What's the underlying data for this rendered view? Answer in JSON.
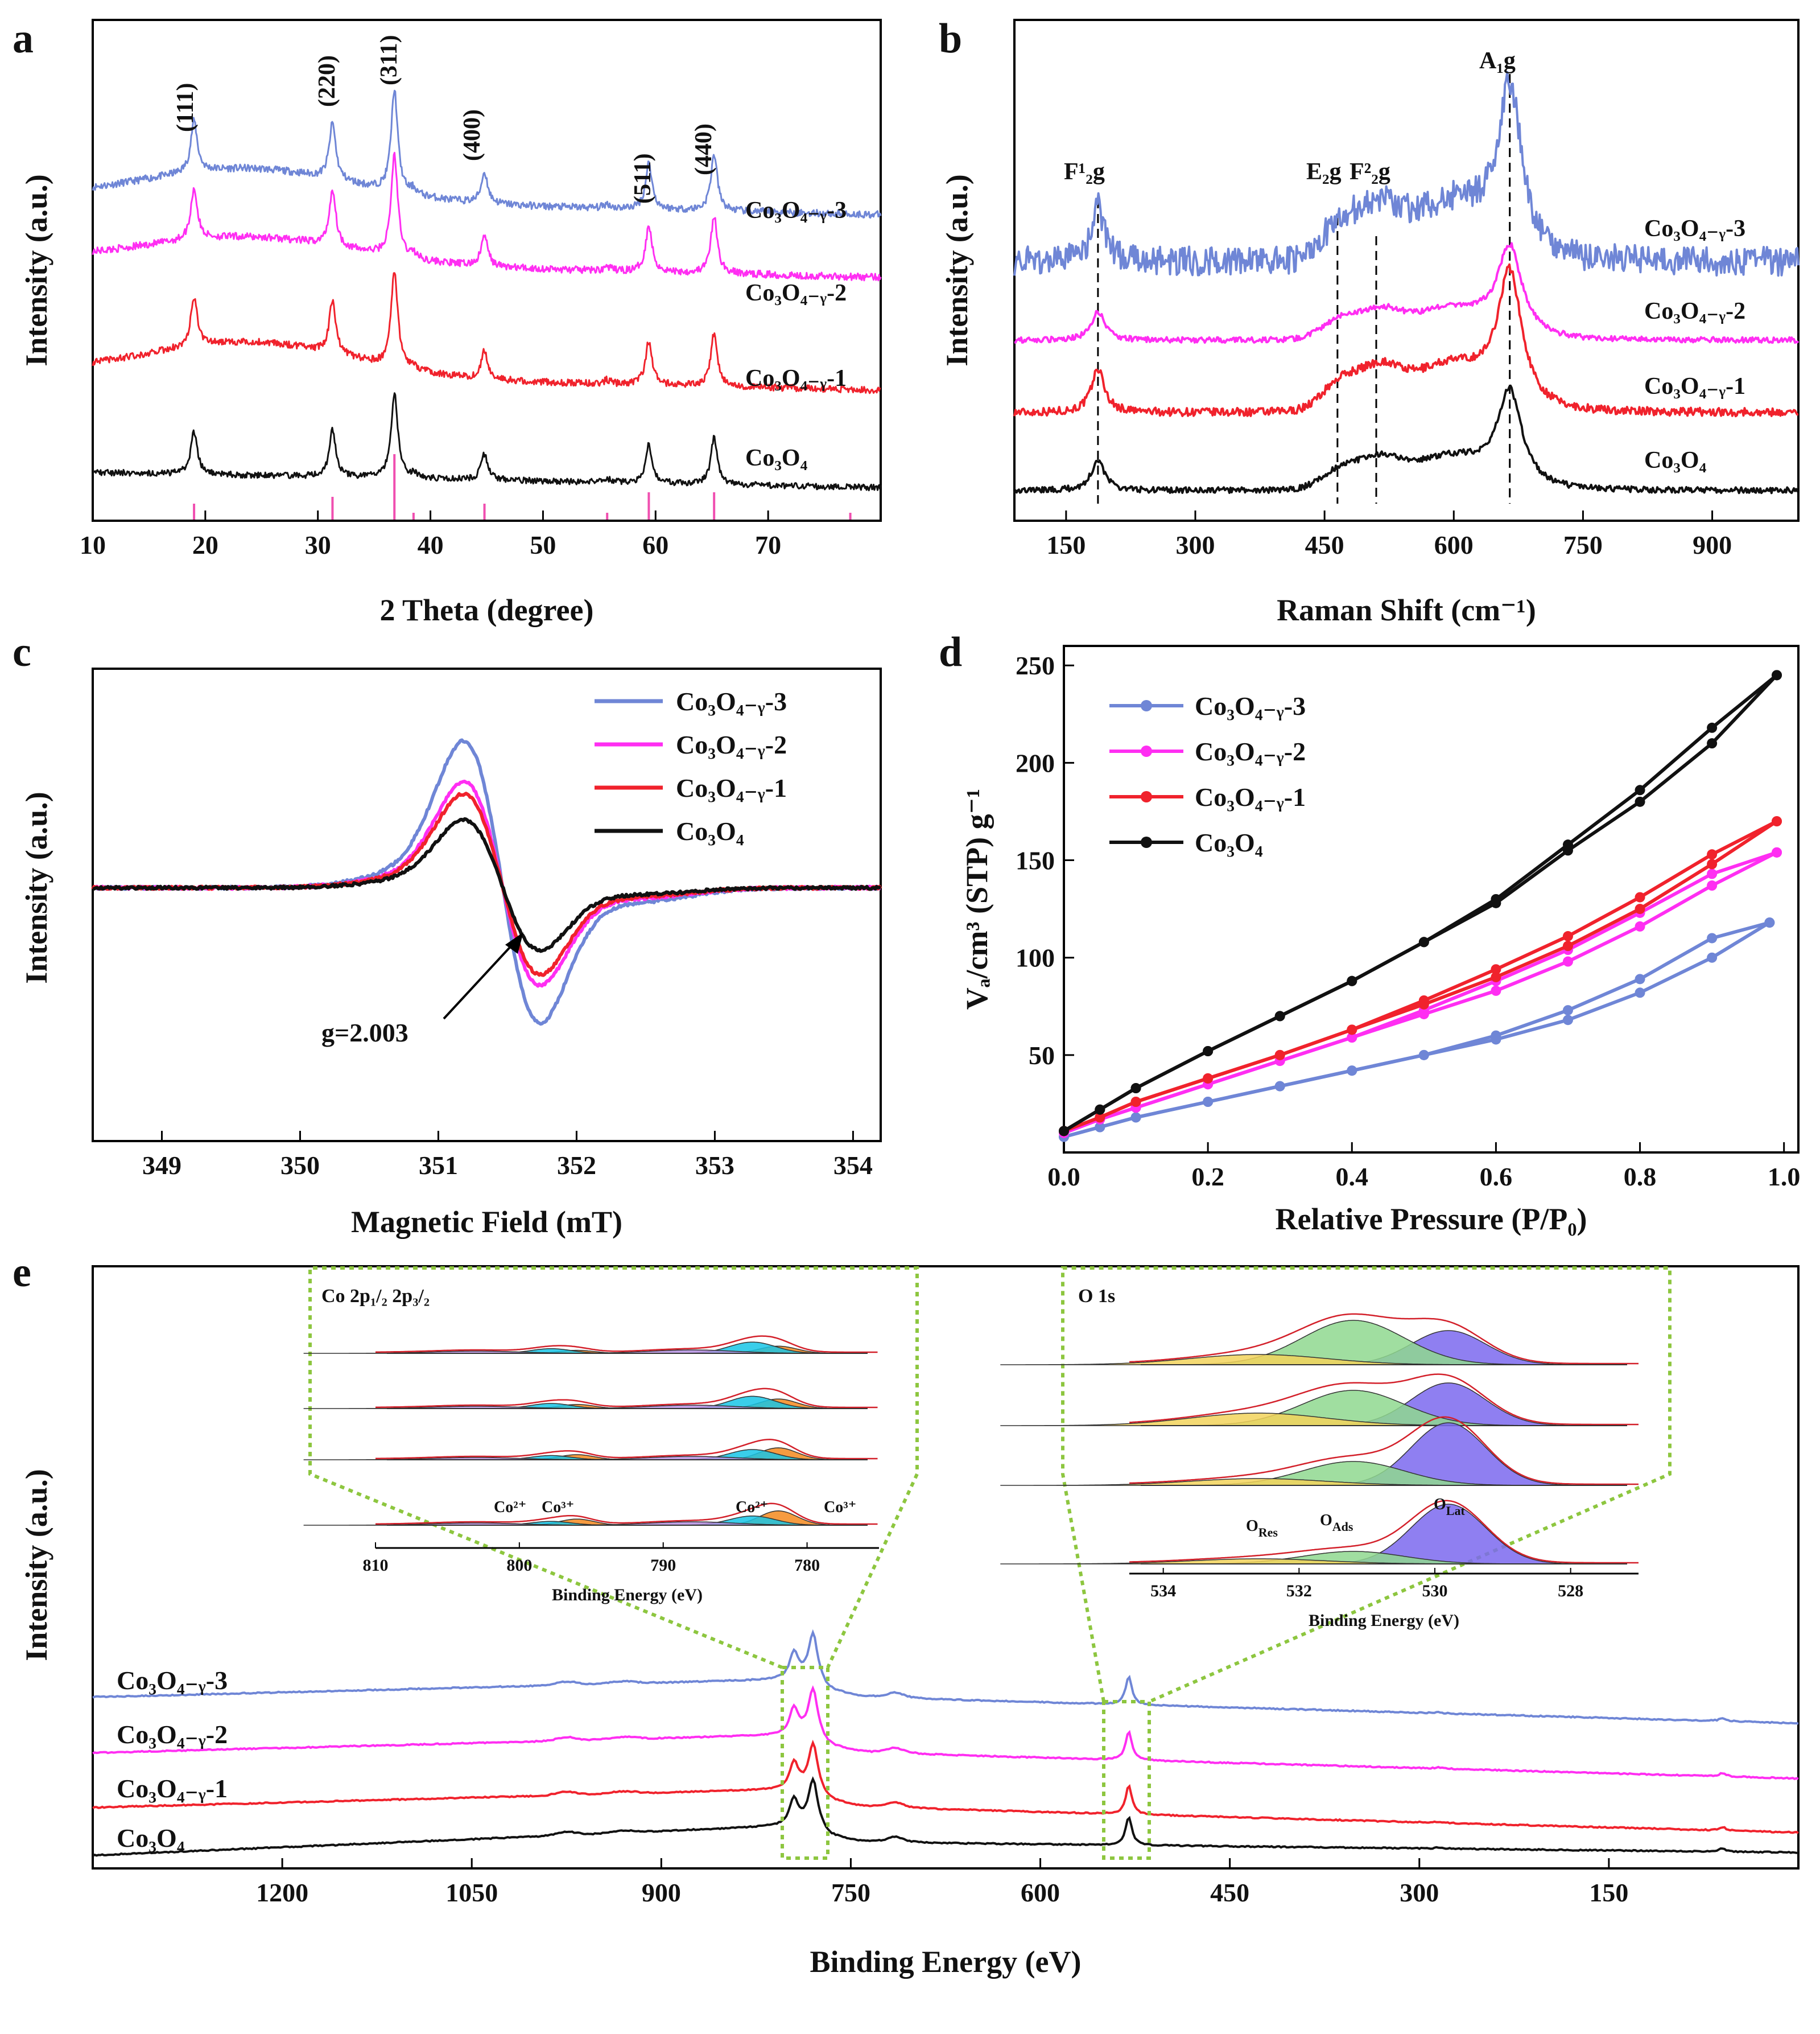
{
  "figure": {
    "letters": [
      "a",
      "b",
      "c",
      "d",
      "e"
    ]
  },
  "colors": {
    "s3": "#6f86d6",
    "s2": "#ff2ef2",
    "s1": "#f0222c",
    "s0": "#111111",
    "ref": "#f04fb0",
    "green": "#8dc63f"
  },
  "chart_data": [
    {
      "panel": "a",
      "type": "line",
      "title": "",
      "xlabel": "2 Theta (degree)",
      "ylabel": "Intensity (a.u.)",
      "xlim": [
        10,
        80
      ],
      "xticks": [
        "10",
        "20",
        "30",
        "40",
        "50",
        "60",
        "70"
      ],
      "series": [
        {
          "name": "Co3O4-3",
          "label": "Co₃O₄₋ᵧ-3"
        },
        {
          "name": "Co3O4-2",
          "label": "Co₃O₄₋ᵧ-2"
        },
        {
          "name": "Co3O4-1",
          "label": "Co₃O₄₋ᵧ-1"
        },
        {
          "name": "Co3O4",
          "label": "Co₃O₄"
        }
      ],
      "peaks": [
        {
          "x": 19.0,
          "label": "(111)",
          "h": 0.5
        },
        {
          "x": 31.3,
          "label": "(220)",
          "h": 0.55
        },
        {
          "x": 36.8,
          "label": "(311)",
          "h": 1.0
        },
        {
          "x": 44.8,
          "label": "(400)",
          "h": 0.3
        },
        {
          "x": 59.4,
          "label": "(511)",
          "h": 0.45
        },
        {
          "x": 65.2,
          "label": "(440)",
          "h": 0.55
        }
      ],
      "reference_lines": [
        19.0,
        31.3,
        36.8,
        38.5,
        44.8,
        55.7,
        59.4,
        65.2,
        77.3
      ]
    },
    {
      "panel": "b",
      "type": "line",
      "xlabel": "Raman Shift (cm⁻¹)",
      "ylabel": "Intensity (a.u.)",
      "xlim": [
        90,
        1000
      ],
      "xticks": [
        "150",
        "300",
        "450",
        "600",
        "750",
        "900"
      ],
      "series": [
        {
          "name": "Co3O4-3",
          "label": "Co₃O₄₋ᵧ-3"
        },
        {
          "name": "Co3O4-2",
          "label": "Co₃O₄₋ᵧ-2"
        },
        {
          "name": "Co3O4-1",
          "label": "Co₃O₄₋ᵧ-1"
        },
        {
          "name": "Co3O4",
          "label": "Co₃O₄"
        }
      ],
      "modes": [
        {
          "x": 187,
          "label": "F¹₂g"
        },
        {
          "x": 465,
          "label": "E₂g"
        },
        {
          "x": 510,
          "label": "F²₂g"
        },
        {
          "x": 665,
          "label": "A₁g"
        }
      ]
    },
    {
      "panel": "c",
      "type": "line",
      "xlabel": "Magnetic Field (mT)",
      "ylabel": "Intensity (a.u.)",
      "xlim": [
        348.5,
        354.2
      ],
      "xticks": [
        "349",
        "350",
        "351",
        "352",
        "353",
        "354"
      ],
      "annotation": "g=2.003",
      "series": [
        {
          "name": "Co3O4-3",
          "label": "Co₃O₄₋ᵧ-3",
          "amplitude": 1.0
        },
        {
          "name": "Co3O4-2",
          "label": "Co₃O₄₋ᵧ-2",
          "amplitude": 0.72
        },
        {
          "name": "Co3O4-1",
          "label": "Co₃O₄₋ᵧ-1",
          "amplitude": 0.64
        },
        {
          "name": "Co3O4",
          "label": "Co₃O₄",
          "amplitude": 0.46
        }
      ],
      "legend": "top-right"
    },
    {
      "panel": "d",
      "type": "line",
      "xlabel": "Relative Pressure (P/P₀)",
      "ylabel": "Vₐ/cm³ (STP) g⁻¹",
      "xlim": [
        0,
        1.02
      ],
      "ylim": [
        0,
        260
      ],
      "xticks": [
        "0.0",
        "0.2",
        "0.4",
        "0.6",
        "0.8",
        "1.0"
      ],
      "yticks": [
        "50",
        "100",
        "150",
        "200",
        "250"
      ],
      "legend": "top-left",
      "series": [
        {
          "name": "Co3O4-3",
          "label": "Co₃O₄₋ᵧ-3",
          "x": [
            0.0,
            0.05,
            0.1,
            0.2,
            0.3,
            0.4,
            0.5,
            0.6,
            0.7,
            0.8,
            0.9,
            0.98
          ],
          "adsorption": [
            8,
            13,
            18,
            26,
            34,
            42,
            50,
            58,
            68,
            82,
            100,
            118
          ],
          "desorption": [
            8,
            13,
            18,
            26,
            34,
            42,
            50,
            60,
            73,
            89,
            110,
            118
          ]
        },
        {
          "name": "Co3O4-2",
          "label": "Co₃O₄₋ᵧ-2",
          "x": [
            0.0,
            0.05,
            0.1,
            0.2,
            0.3,
            0.4,
            0.5,
            0.6,
            0.7,
            0.8,
            0.9,
            0.99
          ],
          "adsorption": [
            10,
            17,
            23,
            35,
            47,
            59,
            71,
            83,
            98,
            116,
            137,
            154
          ],
          "desorption": [
            10,
            17,
            23,
            35,
            47,
            59,
            73,
            88,
            104,
            123,
            143,
            154
          ]
        },
        {
          "name": "Co3O4-1",
          "label": "Co₃O₄₋ᵧ-1",
          "x": [
            0.0,
            0.05,
            0.1,
            0.2,
            0.3,
            0.4,
            0.5,
            0.6,
            0.7,
            0.8,
            0.9,
            0.99
          ],
          "adsorption": [
            11,
            18,
            26,
            38,
            50,
            63,
            76,
            90,
            106,
            125,
            148,
            170
          ],
          "desorption": [
            11,
            18,
            26,
            38,
            50,
            63,
            78,
            94,
            111,
            131,
            153,
            170
          ]
        },
        {
          "name": "Co3O4",
          "label": "Co₃O₄",
          "x": [
            0.0,
            0.05,
            0.1,
            0.2,
            0.3,
            0.4,
            0.5,
            0.6,
            0.7,
            0.8,
            0.9,
            0.99
          ],
          "adsorption": [
            11,
            22,
            33,
            52,
            70,
            88,
            108,
            128,
            155,
            180,
            210,
            245
          ],
          "desorption": [
            11,
            22,
            33,
            52,
            70,
            88,
            108,
            130,
            158,
            186,
            218,
            245
          ]
        }
      ]
    },
    {
      "panel": "e",
      "type": "line",
      "xlabel": "Binding Energy (eV)",
      "ylabel": "Intensity (a.u.)",
      "xlim": [
        1350,
        0
      ],
      "xticks": [
        "1200",
        "1050",
        "900",
        "750",
        "600",
        "450",
        "300",
        "150"
      ],
      "series": [
        {
          "name": "Co3O4-3",
          "label": "Co₃O₄₋ᵧ-3"
        },
        {
          "name": "Co3O4-2",
          "label": "Co₃O₄₋ᵧ-2"
        },
        {
          "name": "Co3O4-1",
          "label": "Co₃O₄₋ᵧ-1"
        },
        {
          "name": "Co3O4",
          "label": "Co₃O₄"
        }
      ],
      "insets": [
        {
          "title": "Co 2p₁/₂ 2p₃/₂",
          "xlabel": "Binding Energy (eV)",
          "xlim": [
            810,
            775
          ],
          "xticks": [
            "810",
            "800",
            "790",
            "780"
          ],
          "peak_labels": [
            "Co²⁺",
            "Co³⁺",
            "Co²⁺",
            "Co³⁺"
          ]
        },
        {
          "title": "O 1s",
          "xlabel": "Binding Energy (eV)",
          "xlim": [
            534.5,
            527
          ],
          "xticks": [
            "534",
            "532",
            "530",
            "528"
          ],
          "peak_labels": [
            "O_Res",
            "O_Ads",
            "O_Lat"
          ]
        }
      ]
    }
  ]
}
